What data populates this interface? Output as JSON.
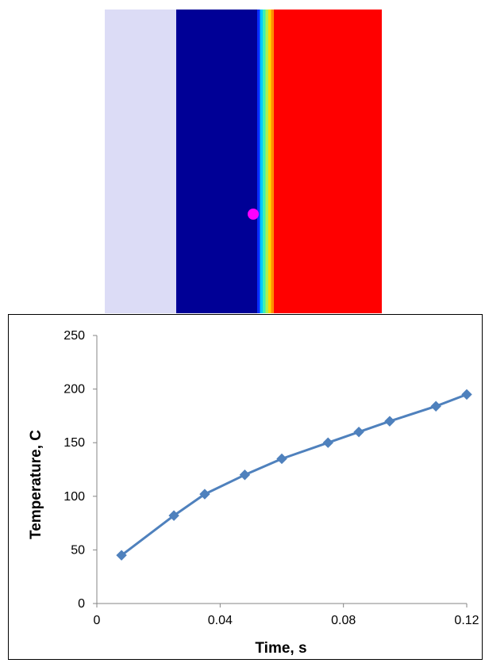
{
  "simulation": {
    "colors": {
      "pale_region": "#dcdcf6",
      "cold_region": "#000096",
      "hot_region": "#ff0000",
      "probe_marker": "#ff00ff"
    },
    "gradient_colors": [
      "#0a2cff",
      "#00c8ff",
      "#3cf0b4",
      "#aaf050",
      "#ffd700",
      "#ff8c00"
    ]
  },
  "chart_data": {
    "type": "line",
    "xlabel": "Time, s",
    "ylabel": "Temperature, C",
    "xlim": [
      0,
      0.12
    ],
    "ylim": [
      0,
      250
    ],
    "x_ticks": [
      0,
      0.04,
      0.08,
      0.12
    ],
    "x_tick_labels": [
      "0",
      "0.04",
      "0.08",
      "0.12"
    ],
    "y_ticks": [
      0,
      50,
      100,
      150,
      200,
      250
    ],
    "y_tick_labels": [
      "0",
      "50",
      "100",
      "150",
      "200",
      "250"
    ],
    "grid": false,
    "legend": "none",
    "marker": "diamond",
    "line_color": "#4f81bd",
    "series": [
      {
        "x": [
          0.008,
          0.025,
          0.035,
          0.048,
          0.06,
          0.075,
          0.085,
          0.095,
          0.11,
          0.12
        ],
        "y": [
          45,
          82,
          102,
          120,
          135,
          150,
          160,
          170,
          184,
          195
        ]
      }
    ]
  }
}
